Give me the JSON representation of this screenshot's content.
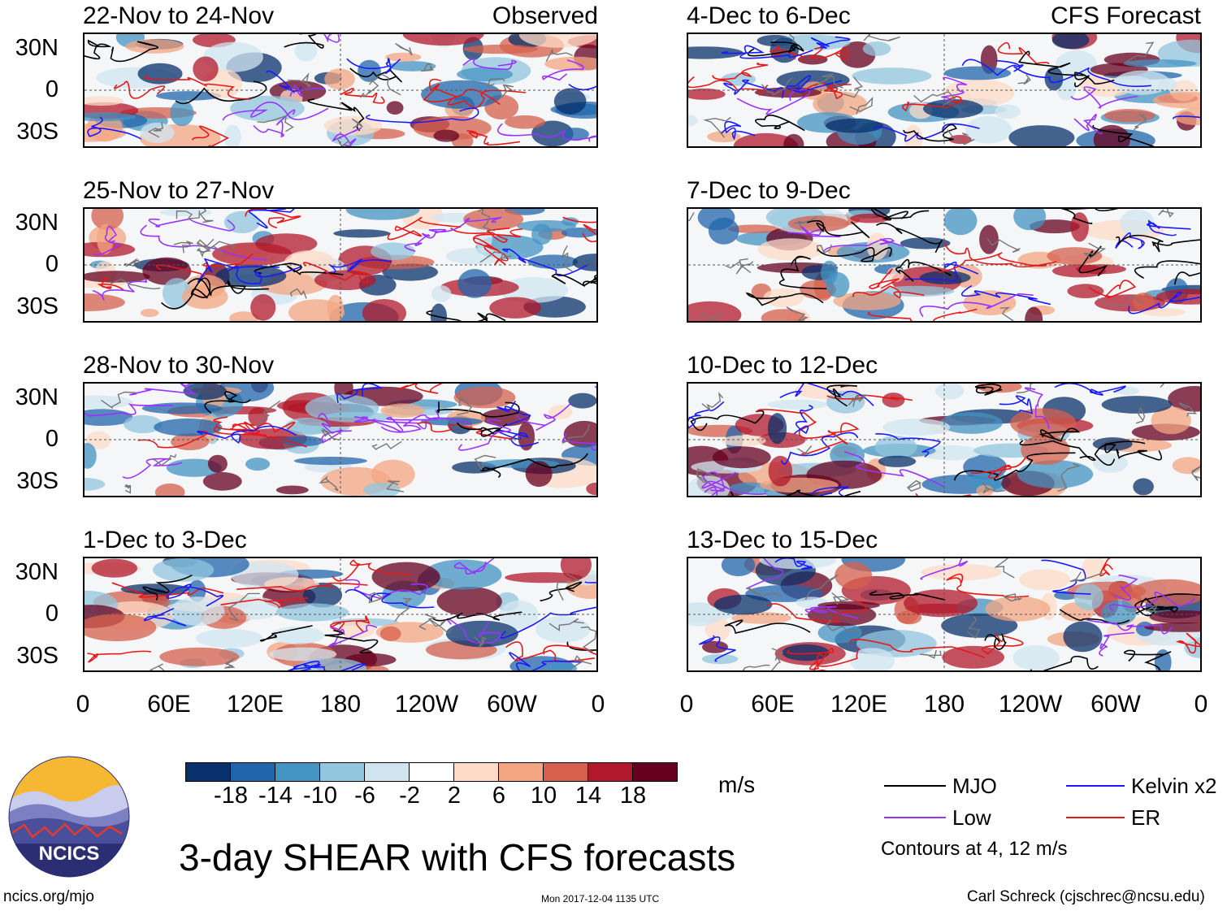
{
  "figure": {
    "title": "3-day SHEAR with CFS forecasts",
    "left_column_label": "Observed",
    "right_column_label": "CFS Forecast",
    "y_ticks": [
      "30N",
      "0",
      "30S"
    ],
    "x_ticks": [
      "0",
      "60E",
      "120E",
      "180",
      "120W",
      "60W",
      "0"
    ]
  },
  "panels_observed": [
    {
      "title": "22-Nov to 24-Nov"
    },
    {
      "title": "25-Nov to 27-Nov"
    },
    {
      "title": "28-Nov to 30-Nov"
    },
    {
      "title": "1-Dec to 3-Dec"
    }
  ],
  "panels_forecast": [
    {
      "title": "4-Dec to 6-Dec"
    },
    {
      "title": "7-Dec to 9-Dec"
    },
    {
      "title": "10-Dec to 12-Dec"
    },
    {
      "title": "13-Dec to 15-Dec"
    }
  ],
  "colorbar": {
    "labels": [
      "-18",
      "-14",
      "-10",
      "-6",
      "-2",
      "2",
      "6",
      "10",
      "14",
      "18"
    ],
    "colors": [
      "#08306b",
      "#2166ac",
      "#4393c3",
      "#92c5de",
      "#d1e5f0",
      "#ffffff",
      "#fddbc7",
      "#f4a582",
      "#d6604d",
      "#b2182b",
      "#67001f"
    ],
    "units": "m/s"
  },
  "legend": {
    "items": [
      {
        "label": "MJO",
        "color": "#000000"
      },
      {
        "label": "Kelvin x2",
        "color": "#1a1aff"
      },
      {
        "label": "Low",
        "color": "#9933ff"
      },
      {
        "label": "ER",
        "color": "#e61919"
      }
    ],
    "note": "Contours at 4, 12 m/s"
  },
  "logo": {
    "text": "NCICS"
  },
  "footer": {
    "website": "ncics.org/mjo",
    "timestamp": "Mon 2017-12-04 1135 UTC",
    "author": "Carl Schreck (cjschrec@ncsu.edu)"
  }
}
